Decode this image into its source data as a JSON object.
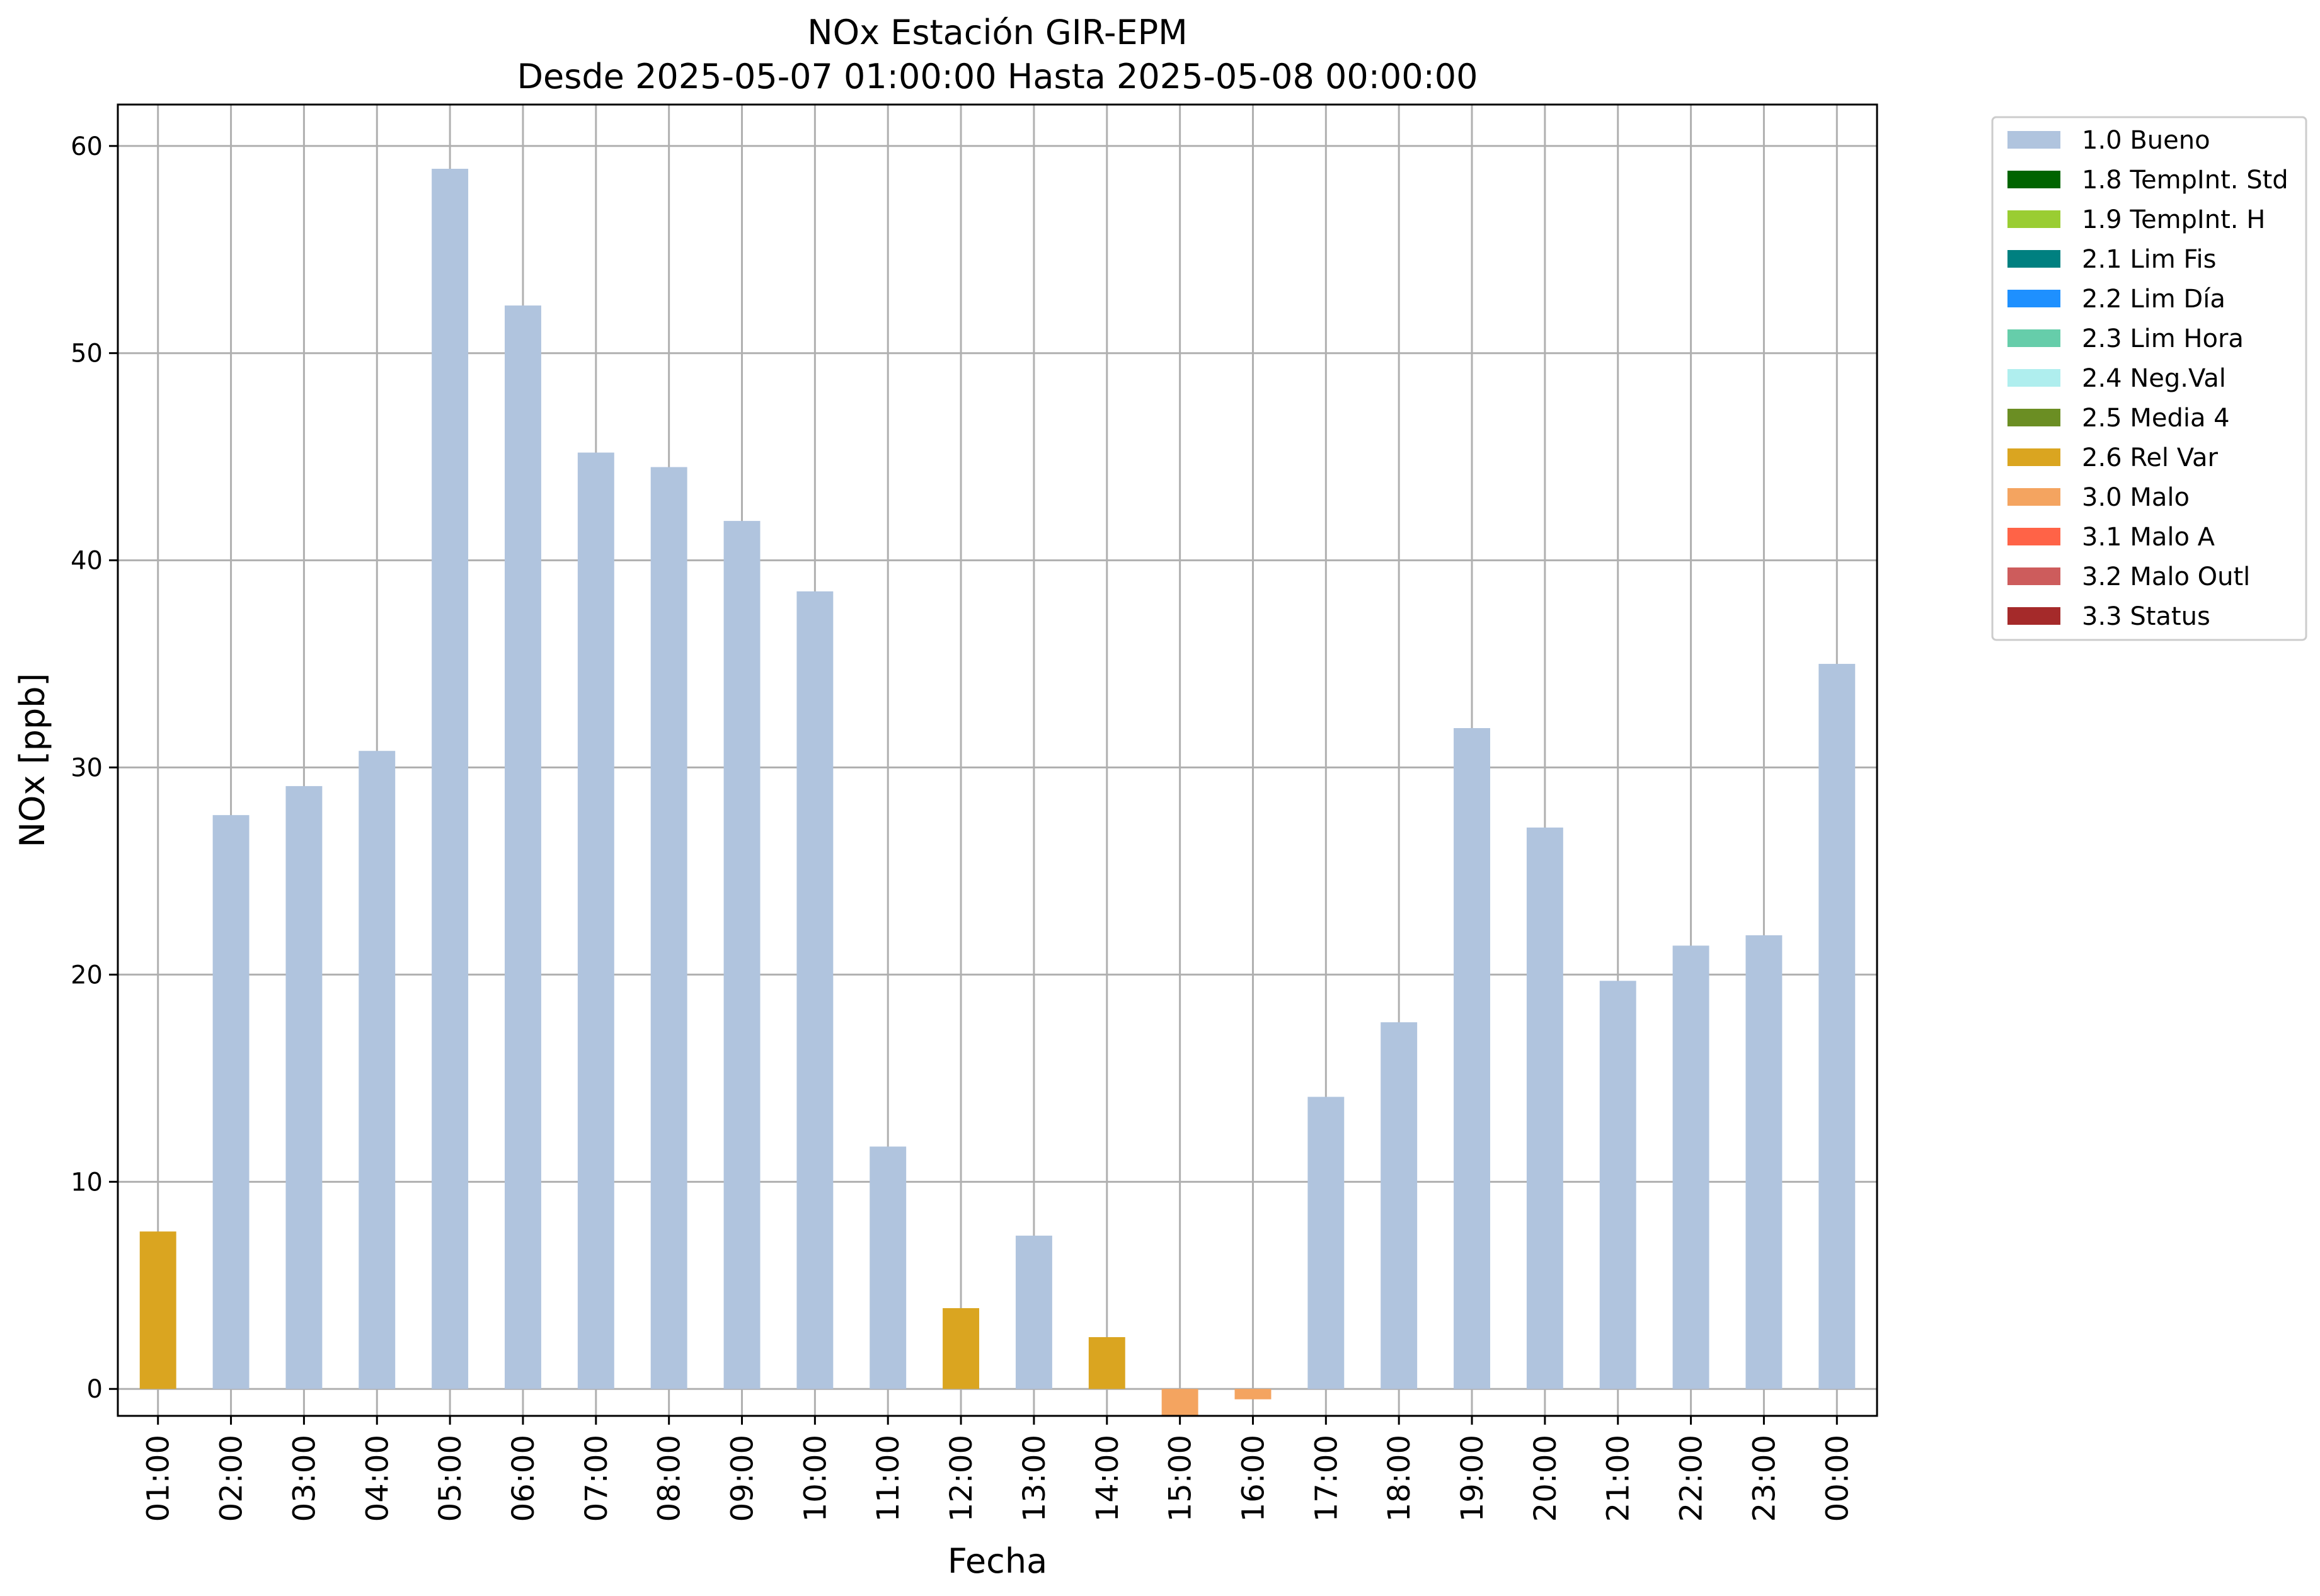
{
  "chart_data": {
    "type": "bar",
    "title": "NOx Estación GIR-EPM",
    "subtitle": "Desde 2025-05-07 01:00:00 Hasta 2025-05-08 00:00:00",
    "xlabel": "Fecha",
    "ylabel": "NOx [ppb]",
    "ylim": [
      -1.3,
      62
    ],
    "yticks": [
      0,
      10,
      20,
      30,
      40,
      50,
      60
    ],
    "grid": true,
    "legend_position": "outside-top-right",
    "categories": [
      "01:00",
      "02:00",
      "03:00",
      "04:00",
      "05:00",
      "06:00",
      "07:00",
      "08:00",
      "09:00",
      "10:00",
      "11:00",
      "12:00",
      "13:00",
      "14:00",
      "15:00",
      "16:00",
      "17:00",
      "18:00",
      "19:00",
      "20:00",
      "21:00",
      "22:00",
      "23:00",
      "00:00"
    ],
    "values": [
      7.6,
      27.7,
      29.1,
      30.8,
      58.9,
      52.3,
      45.2,
      44.5,
      41.9,
      38.5,
      11.7,
      3.9,
      7.4,
      2.5,
      -1.3,
      -0.5,
      14.1,
      17.7,
      31.9,
      27.1,
      19.7,
      21.4,
      21.9,
      35.0
    ],
    "value_flags": [
      "2.6 Rel Var",
      "1.0 Bueno",
      "1.0 Bueno",
      "1.0 Bueno",
      "1.0 Bueno",
      "1.0 Bueno",
      "1.0 Bueno",
      "1.0 Bueno",
      "1.0 Bueno",
      "1.0 Bueno",
      "1.0 Bueno",
      "2.6 Rel Var",
      "1.0 Bueno",
      "2.6 Rel Var",
      "3.0 Malo",
      "3.0 Malo",
      "1.0 Bueno",
      "1.0 Bueno",
      "1.0 Bueno",
      "1.0 Bueno",
      "1.0 Bueno",
      "1.0 Bueno",
      "1.0 Bueno",
      "1.0 Bueno"
    ],
    "legend": [
      {
        "label": "1.0 Bueno",
        "color": "#b0c4de"
      },
      {
        "label": "1.8 TempInt. Std",
        "color": "#006400"
      },
      {
        "label": "1.9 TempInt. H",
        "color": "#9acd32"
      },
      {
        "label": "2.1 Lim Fis",
        "color": "#008080"
      },
      {
        "label": "2.2 Lim Día",
        "color": "#1e90ff"
      },
      {
        "label": "2.3 Lim Hora",
        "color": "#66cdaa"
      },
      {
        "label": "2.4 Neg.Val",
        "color": "#afeeee"
      },
      {
        "label": "2.5 Media 4",
        "color": "#6b8e23"
      },
      {
        "label": "2.6 Rel Var",
        "color": "#daa520"
      },
      {
        "label": "3.0 Malo",
        "color": "#f4a460"
      },
      {
        "label": "3.1 Malo A",
        "color": "#ff6347"
      },
      {
        "label": "3.2 Malo Outl",
        "color": "#cd5c5c"
      },
      {
        "label": "3.3 Status",
        "color": "#a52a2a"
      }
    ]
  }
}
